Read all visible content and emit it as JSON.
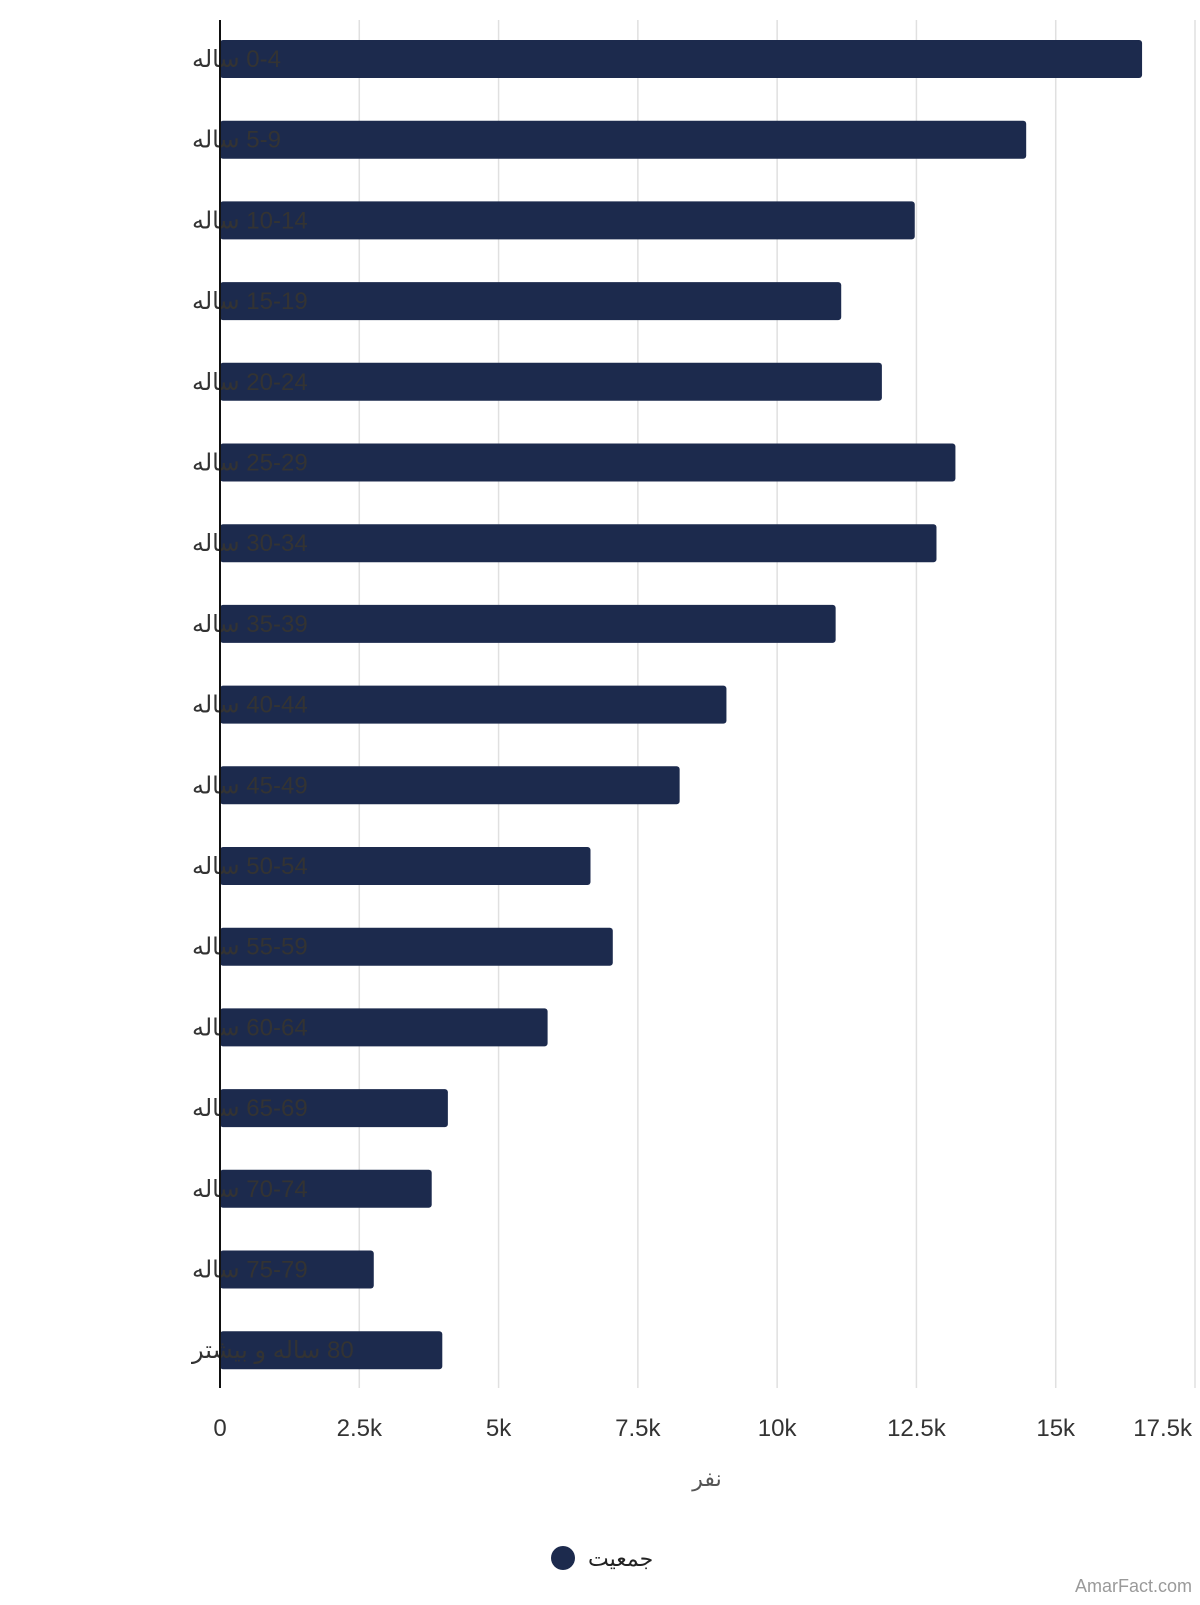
{
  "chart_data": {
    "type": "bar",
    "orientation": "horizontal",
    "categories": [
      "0-4 ساله",
      "5-9 ساله",
      "10-14 ساله",
      "15-19 ساله",
      "20-24 ساله",
      "25-29 ساله",
      "30-34 ساله",
      "35-39 ساله",
      "40-44 ساله",
      "45-49 ساله",
      "50-54 ساله",
      "55-59 ساله",
      "60-64 ساله",
      "65-69 ساله",
      "70-74 ساله",
      "75-79 ساله",
      "80 ساله و بیشتر"
    ],
    "series": [
      {
        "name": "جمعیت",
        "color": "#1c2a4d",
        "values": [
          16550,
          14470,
          12470,
          11150,
          11880,
          13200,
          12860,
          11050,
          9090,
          8250,
          6650,
          7050,
          5880,
          4090,
          3800,
          2760,
          3990
        ]
      }
    ],
    "xlim": [
      0,
      17500
    ],
    "x_ticks": [
      0,
      2500,
      5000,
      7500,
      10000,
      12500,
      15000,
      17500
    ],
    "x_tick_labels": [
      "0",
      "2.5k",
      "5k",
      "7.5k",
      "10k",
      "12.5k",
      "15k",
      "17.5k"
    ],
    "xlabel": "نفر",
    "ylabel": "",
    "title": "",
    "grid": true,
    "legend_position": "bottom-center"
  },
  "watermark": "AmarFact.com"
}
